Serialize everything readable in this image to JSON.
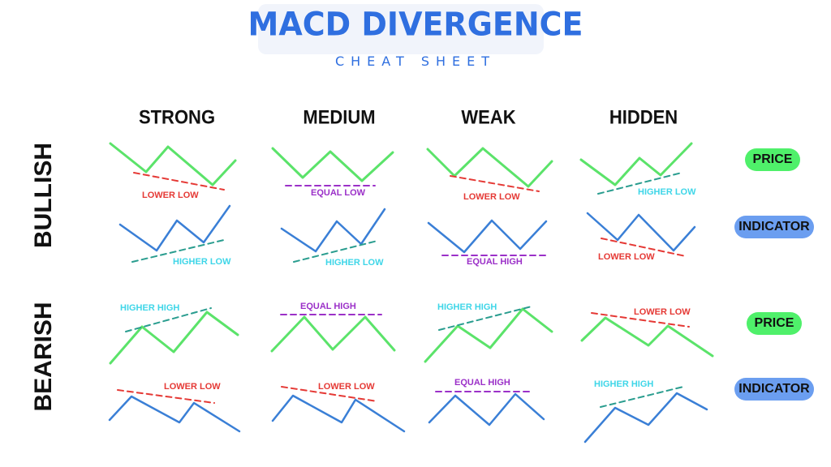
{
  "title": "MACD DIVERGENCE",
  "subtitle": "CHEAT SHEET",
  "columns": [
    "STRONG",
    "MEDIUM",
    "WEAK",
    "HIDDEN"
  ],
  "rows": [
    "BULLISH",
    "BEARISH"
  ],
  "legend": {
    "price": "PRICE",
    "indicator": "INDICATOR"
  },
  "colors": {
    "price": "#5be36a",
    "indicator": "#3a7fd6",
    "title": "#2f6fe0",
    "red": "#e53935",
    "cyan": "#3fd6e8",
    "purple": "#9b30c8",
    "teal": "#2a9d8f",
    "price_pill": "#4ff06a",
    "indicator_pill": "#6b9ef0"
  },
  "labels": {
    "bull_price": [
      "LOWER LOW",
      "EQUAL LOW",
      "LOWER LOW",
      "HIGHER LOW"
    ],
    "bull_ind": [
      "HIGHER LOW",
      "HIGHER LOW",
      "EQUAL HIGH",
      "LOWER LOW"
    ],
    "bear_price": [
      "HIGHER HIGH",
      "EQUAL HIGH",
      "HIGHER HIGH",
      "LOWER LOW"
    ],
    "bear_ind": [
      "LOWER LOW",
      "LOWER LOW",
      "EQUAL HIGH",
      "HIGHER HIGH"
    ]
  }
}
